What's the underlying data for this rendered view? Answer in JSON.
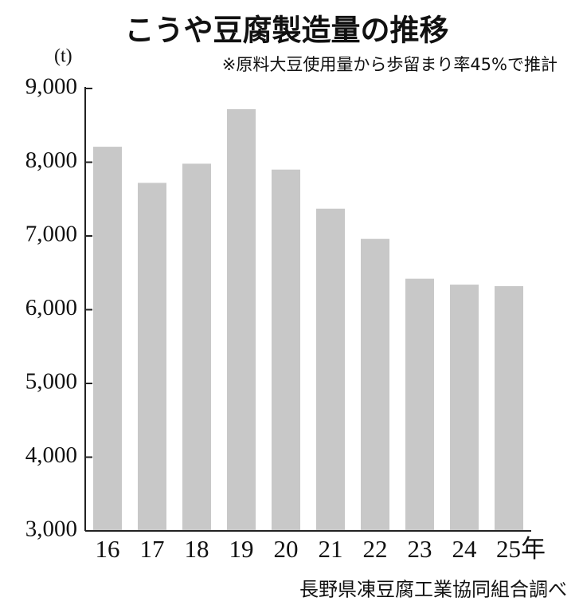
{
  "chart_data": {
    "type": "bar",
    "title": "こうや豆腐製造量の推移",
    "unit": "(t)",
    "note": "※原料大豆使用量から歩留まり率45%で推計",
    "source": "長野県凍豆腐工業協同組合調べ",
    "categories": [
      "16",
      "17",
      "18",
      "19",
      "20",
      "21",
      "22",
      "23",
      "24",
      "25年"
    ],
    "values": [
      8210,
      7720,
      7980,
      8720,
      7900,
      7370,
      6960,
      6420,
      6340,
      6320
    ],
    "color": "#c8c8c8",
    "ylim": [
      3000,
      9000
    ],
    "yticks": [
      {
        "value": 3000,
        "label": "3,000"
      },
      {
        "value": 4000,
        "label": "4,000"
      },
      {
        "value": 5000,
        "label": "5,000"
      },
      {
        "value": 6000,
        "label": "6,000"
      },
      {
        "value": 7000,
        "label": "7,000"
      },
      {
        "value": 8000,
        "label": "8,000"
      },
      {
        "value": 9000,
        "label": "9,000"
      }
    ],
    "grid": false
  }
}
